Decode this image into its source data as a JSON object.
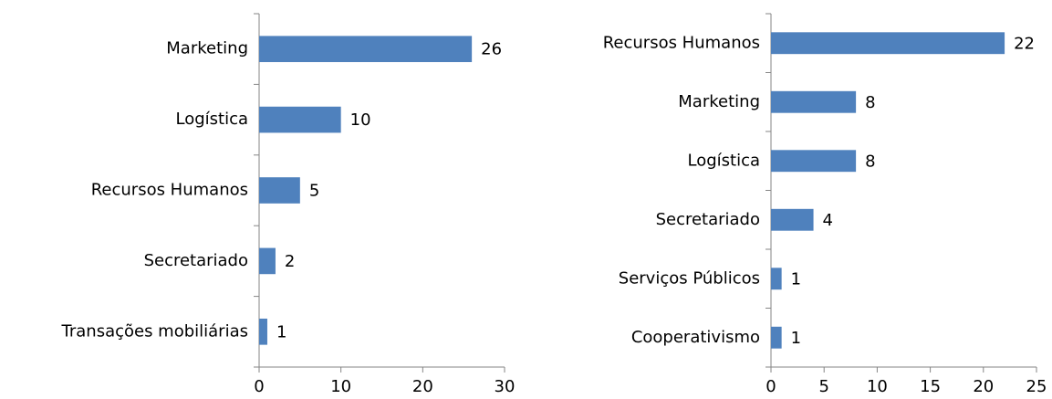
{
  "chart_data": [
    {
      "type": "bar",
      "orientation": "horizontal",
      "categories": [
        "Marketing",
        "Logística",
        "Recursos Humanos",
        "Secretariado",
        "Transações mobiliárias"
      ],
      "values": [
        26,
        10,
        5,
        2,
        1
      ],
      "color": "#4f81bd",
      "xlim": [
        0,
        30
      ],
      "xticks": [
        0,
        10,
        20,
        30
      ]
    },
    {
      "type": "bar",
      "orientation": "horizontal",
      "categories": [
        "Recursos Humanos",
        "Marketing",
        "Logística",
        "Secretariado",
        "Serviços Públicos",
        "Cooperativismo"
      ],
      "values": [
        22,
        8,
        8,
        4,
        1,
        1
      ],
      "color": "#4f81bd",
      "xlim": [
        0,
        25
      ],
      "xticks": [
        0,
        5,
        10,
        15,
        20,
        25
      ]
    }
  ]
}
